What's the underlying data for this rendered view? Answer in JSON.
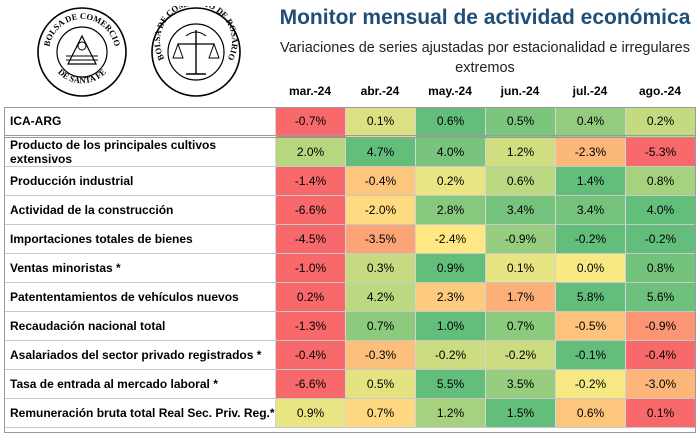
{
  "header": {
    "title": "Monitor mensual de actividad económica",
    "subtitle": "Variaciones de series ajustadas por estacionalidad e irregulares extremos"
  },
  "logos": {
    "left_text_top": "BOLSA DE COMERCIO",
    "left_text_bottom": "DE SANTA FE",
    "right_text": "BOLSA DE COMERCIO DE ROSARIO"
  },
  "chart_data": {
    "type": "table",
    "columns": [
      "mar.-24",
      "abr.-24",
      "may.-24",
      "jun.-24",
      "jul.-24",
      "ago.-24"
    ],
    "rows": [
      {
        "label": "ICA-ARG",
        "values": [
          -0.7,
          0.1,
          0.6,
          0.5,
          0.4,
          0.2
        ],
        "display": [
          "-0.7%",
          "0.1%",
          "0.6%",
          "0.5%",
          "0.4%",
          "0.2%"
        ]
      },
      {
        "label": "Producto de los principales cultivos extensivos",
        "values": [
          2.0,
          4.7,
          4.0,
          1.2,
          -2.3,
          -5.3
        ],
        "display": [
          "2.0%",
          "4.7%",
          "4.0%",
          "1.2%",
          "-2.3%",
          "-5.3%"
        ]
      },
      {
        "label": "Producción industrial",
        "values": [
          -1.4,
          -0.4,
          0.2,
          0.6,
          1.4,
          0.8
        ],
        "display": [
          "-1.4%",
          "-0.4%",
          "0.2%",
          "0.6%",
          "1.4%",
          "0.8%"
        ]
      },
      {
        "label": "Actividad de la construcción",
        "values": [
          -6.6,
          -2.0,
          2.8,
          3.4,
          3.4,
          4.0
        ],
        "display": [
          "-6.6%",
          "-2.0%",
          "2.8%",
          "3.4%",
          "3.4%",
          "4.0%"
        ]
      },
      {
        "label": "Importaciones totales de bienes",
        "values": [
          -4.5,
          -3.5,
          -2.4,
          -0.9,
          -0.2,
          -0.2
        ],
        "display": [
          "-4.5%",
          "-3.5%",
          "-2.4%",
          "-0.9%",
          "-0.2%",
          "-0.2%"
        ]
      },
      {
        "label": "Ventas minoristas *",
        "values": [
          -1.0,
          0.3,
          0.9,
          0.1,
          0.0,
          0.8
        ],
        "display": [
          "-1.0%",
          "0.3%",
          "0.9%",
          "0.1%",
          "0.0%",
          "0.8%"
        ]
      },
      {
        "label": "Patententamientos de vehículos nuevos",
        "values": [
          0.2,
          4.2,
          2.3,
          1.7,
          5.8,
          5.6
        ],
        "display": [
          "0.2%",
          "4.2%",
          "2.3%",
          "1.7%",
          "5.8%",
          "5.6%"
        ]
      },
      {
        "label": "Recaudación nacional total",
        "values": [
          -1.3,
          0.7,
          1.0,
          0.7,
          -0.5,
          -0.9
        ],
        "display": [
          "-1.3%",
          "0.7%",
          "1.0%",
          "0.7%",
          "-0.5%",
          "-0.9%"
        ]
      },
      {
        "label": "Asalariados del sector privado registrados *",
        "values": [
          -0.4,
          -0.3,
          -0.2,
          -0.2,
          -0.1,
          -0.4
        ],
        "display": [
          "-0.4%",
          "-0.3%",
          "-0.2%",
          "-0.2%",
          "-0.1%",
          "-0.4%"
        ]
      },
      {
        "label": "Tasa de entrada al mercado laboral *",
        "values": [
          -6.6,
          0.5,
          5.5,
          3.5,
          -0.2,
          -3.0
        ],
        "display": [
          "-6.6%",
          "0.5%",
          "5.5%",
          "3.5%",
          "-0.2%",
          "-3.0%"
        ]
      },
      {
        "label": "Remuneración bruta total Real Sec. Priv. Reg.*",
        "values": [
          0.9,
          0.7,
          1.2,
          1.5,
          0.6,
          0.1
        ],
        "display": [
          "0.9%",
          "0.7%",
          "1.2%",
          "1.5%",
          "0.6%",
          "0.1%"
        ]
      }
    ]
  },
  "colors": {
    "title": "#1f4e79",
    "red": "#f8696b",
    "yellow": "#ffeb84",
    "green": "#63be7b"
  }
}
